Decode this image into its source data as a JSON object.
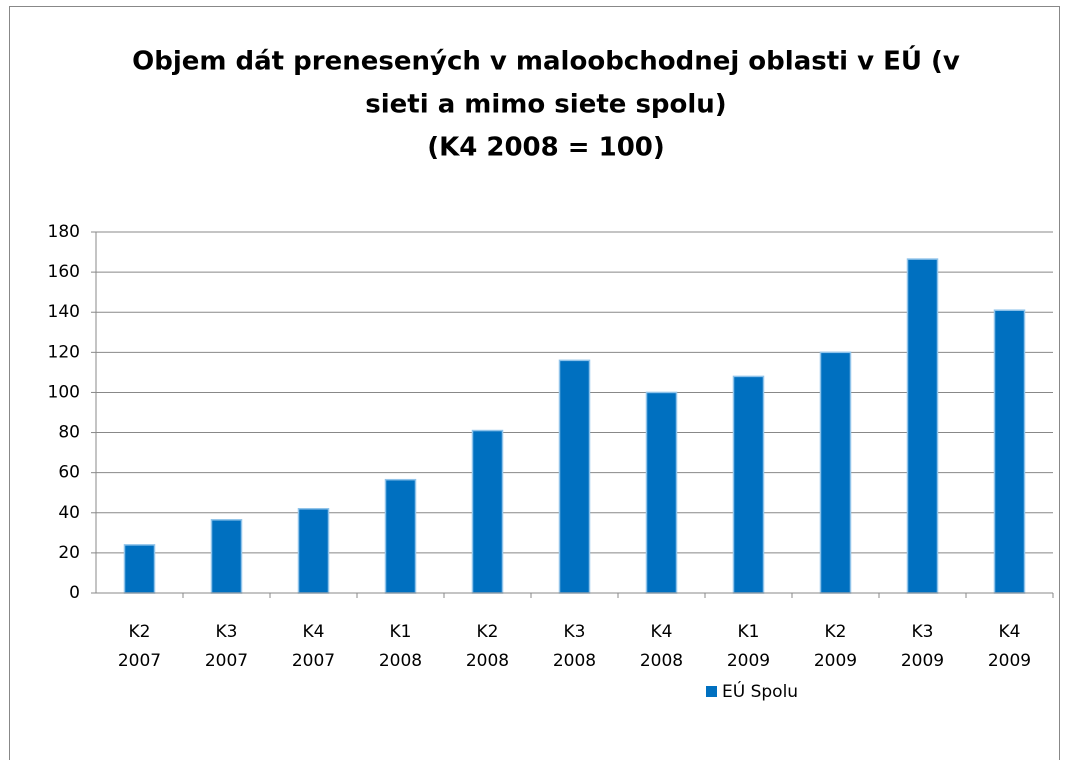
{
  "chart_data": {
    "type": "bar",
    "title": [
      "Objem dát prenesených v maloobchodnej oblasti v EÚ (v",
      "sieti a mimo siete spolu)",
      "(K4 2008 = 100)"
    ],
    "categories": [
      [
        "K2",
        "2007"
      ],
      [
        "K3",
        "2007"
      ],
      [
        "K4",
        "2007"
      ],
      [
        "K1",
        "2008"
      ],
      [
        "K2",
        "2008"
      ],
      [
        "K3",
        "2008"
      ],
      [
        "K4",
        "2008"
      ],
      [
        "K1",
        "2009"
      ],
      [
        "K2",
        "2009"
      ],
      [
        "K3",
        "2009"
      ],
      [
        "K4",
        "2009"
      ]
    ],
    "series": [
      {
        "name": "EÚ Spolu",
        "color": "#0070c0",
        "values": [
          24,
          36.5,
          42,
          56.5,
          81,
          116,
          100,
          108,
          120,
          166.5,
          141
        ]
      }
    ],
    "ylim": [
      0,
      180
    ],
    "yticks": [
      0,
      20,
      40,
      60,
      80,
      100,
      120,
      140,
      160,
      180
    ],
    "grid": true,
    "legend": "bottom"
  }
}
